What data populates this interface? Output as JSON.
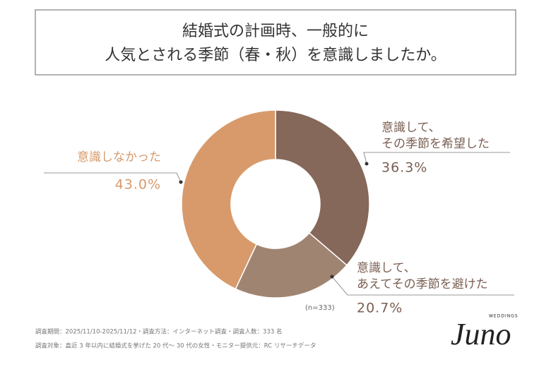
{
  "chart_data": {
    "type": "pie",
    "title": [
      "結婚式の計画時、一般的に",
      "人気とされる季節（春・秋）を意識しましたか。"
    ],
    "categories": [
      [
        "意識して、",
        "その季節を希望した"
      ],
      [
        "意識して、",
        "あえてその季節を避けた"
      ],
      [
        "意識しなかった"
      ]
    ],
    "values": [
      36.3,
      20.7,
      43.0
    ],
    "value_labels": [
      "36.3%",
      "20.7%",
      "43.0%"
    ],
    "colors": [
      "#85685a",
      "#a08472",
      "#d89a6b"
    ],
    "label_colors": [
      "#7a5f52",
      "#7a5f52",
      "#d89a6b"
    ],
    "annotation": "(n=333)",
    "footnotes": [
      "調査期間：2025/11/10-2025/11/12・調査方法：インターネット調査・調査人数：333 名",
      "調査対象：直近 3 年以内に結婚式を挙げた 20 代〜 30 代の女性・モニター提供元：RC リサーチデータ"
    ],
    "logo": {
      "name": "Juno",
      "sub": "WEDDINGS"
    }
  }
}
